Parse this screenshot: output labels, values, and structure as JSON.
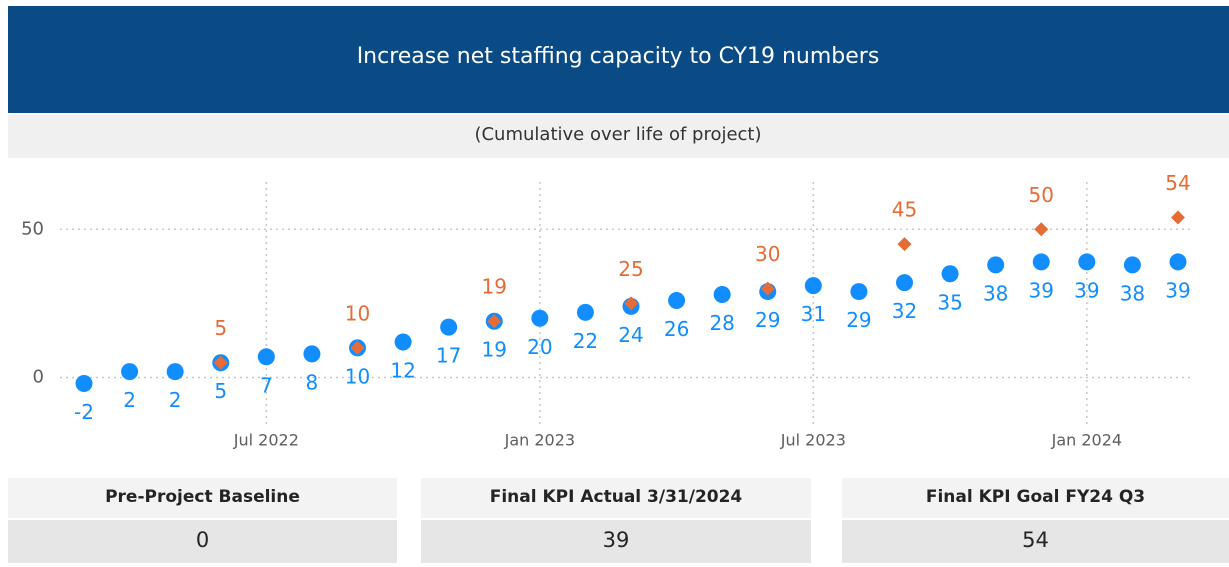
{
  "header": {
    "title": "Increase net staffing capacity to CY19 numbers",
    "subtitle": "(Cumulative over life of project)"
  },
  "chart_data": {
    "type": "scatter",
    "x": [
      "2022-03",
      "2022-04",
      "2022-05",
      "2022-06",
      "2022-07",
      "2022-08",
      "2022-09",
      "2022-10",
      "2022-11",
      "2022-12",
      "2023-01",
      "2023-02",
      "2023-03",
      "2023-04",
      "2023-05",
      "2023-06",
      "2023-07",
      "2023-08",
      "2023-09",
      "2023-10",
      "2023-11",
      "2023-12",
      "2024-01",
      "2024-02",
      "2024-03"
    ],
    "series": [
      {
        "color": "#118dff",
        "marker": "circle",
        "values": [
          -2,
          2,
          2,
          5,
          7,
          8,
          10,
          12,
          17,
          19,
          20,
          22,
          24,
          26,
          28,
          29,
          31,
          29,
          32,
          35,
          38,
          39,
          39,
          38,
          39
        ]
      },
      {
        "color": "#e66c37",
        "marker": "diamond",
        "values": [
          null,
          null,
          null,
          5,
          null,
          null,
          10,
          null,
          null,
          19,
          null,
          null,
          25,
          null,
          null,
          30,
          null,
          null,
          45,
          null,
          null,
          50,
          null,
          null,
          54
        ]
      }
    ],
    "xlim": [
      "2022-03",
      "2024-03"
    ],
    "xticks": [
      {
        "value": "2022-07",
        "label": "Jul 2022"
      },
      {
        "value": "2023-01",
        "label": "Jan 2023"
      },
      {
        "value": "2023-07",
        "label": "Jul 2023"
      },
      {
        "value": "2024-01",
        "label": "Jan 2024"
      }
    ],
    "ylim": [
      -16,
      70
    ],
    "yticks": [
      0,
      50
    ],
    "grid": true
  },
  "cards": [
    {
      "label": "Pre-Project Baseline",
      "value": 0
    },
    {
      "label": "Final KPI Actual 3/31/2024",
      "value": 39
    },
    {
      "label": "Final KPI Goal FY24 Q3",
      "value": 54
    }
  ]
}
